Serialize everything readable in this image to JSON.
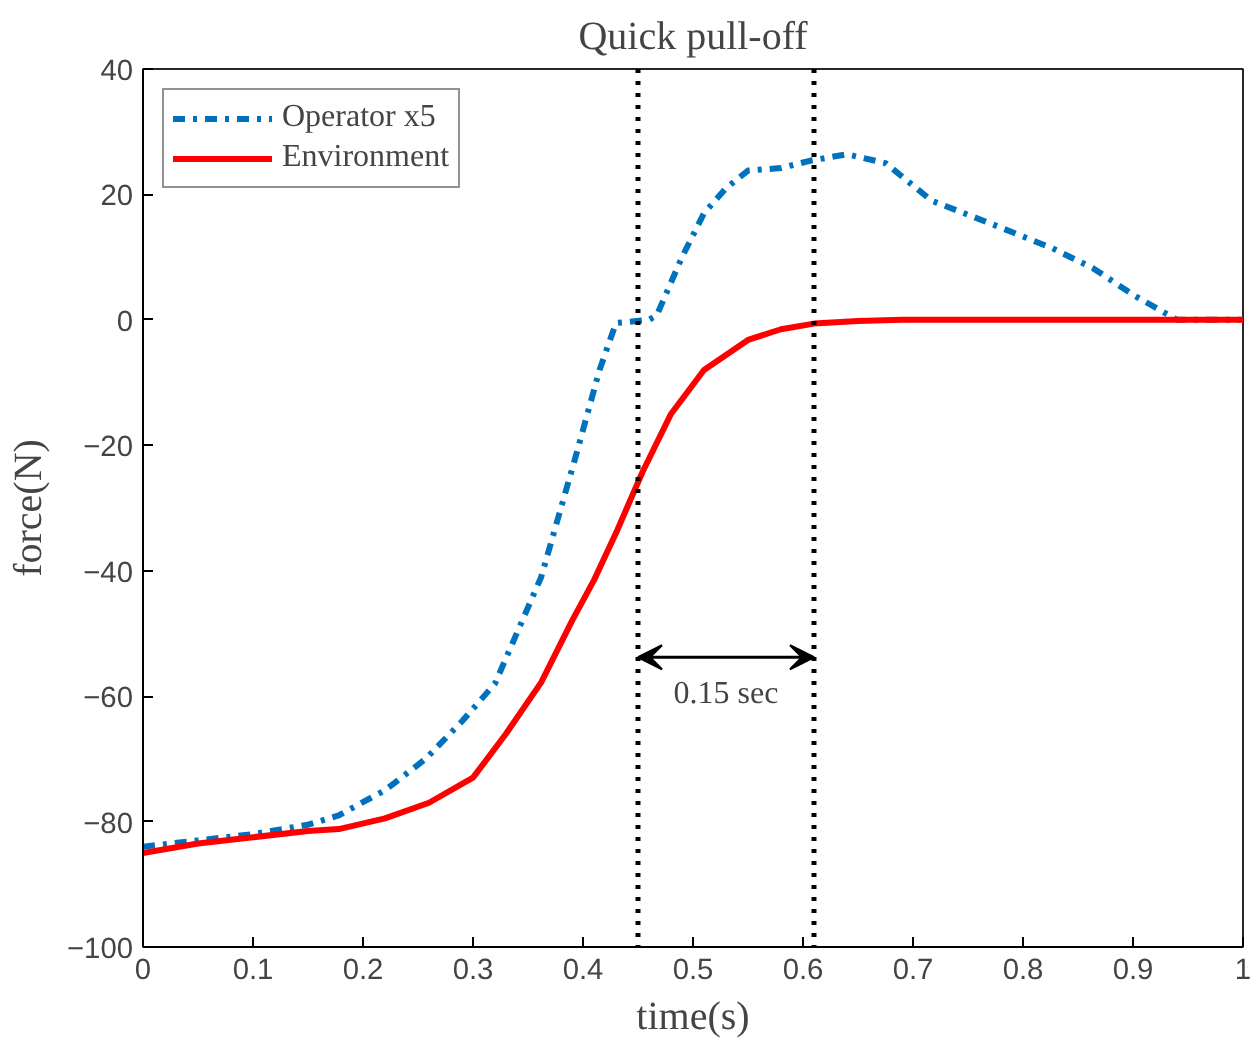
{
  "chart_data": {
    "type": "line",
    "title": "Quick pull-off",
    "xlabel": "time(s)",
    "ylabel": "force(N)",
    "xlim": [
      0,
      1
    ],
    "ylim": [
      -100,
      40
    ],
    "xticks": [
      0,
      0.1,
      0.2,
      0.3,
      0.4,
      0.5,
      0.6,
      0.7,
      0.8,
      0.9,
      1
    ],
    "yticks": [
      -100,
      -80,
      -60,
      -40,
      -20,
      0,
      20,
      40
    ],
    "grid": false,
    "legend": "top left",
    "series": [
      {
        "name": "Operator x5",
        "color": "#0072bd",
        "line_style": "dashdot",
        "x": [
          0,
          0.05,
          0.1,
          0.15,
          0.178,
          0.22,
          0.257,
          0.29,
          0.32,
          0.362,
          0.393,
          0.415,
          0.43,
          0.46,
          0.467,
          0.49,
          0.51,
          0.53,
          0.55,
          0.58,
          0.607,
          0.64,
          0.675,
          0.717,
          0.767,
          0.827,
          0.864,
          0.9,
          0.94,
          1.0
        ],
        "values": [
          -84,
          -83,
          -82,
          -80.5,
          -79,
          -75,
          -70,
          -64,
          -58,
          -41,
          -22,
          -8,
          -0.5,
          0,
          0.7,
          10,
          17,
          21,
          23.8,
          24.2,
          25.4,
          26.4,
          25,
          19,
          15.6,
          11.4,
          8.2,
          4,
          0,
          0
        ]
      },
      {
        "name": "Environment",
        "color": "#ff0000",
        "line_style": "solid",
        "x": [
          0,
          0.05,
          0.1,
          0.15,
          0.178,
          0.22,
          0.26,
          0.3,
          0.33,
          0.362,
          0.39,
          0.41,
          0.43,
          0.454,
          0.48,
          0.51,
          0.55,
          0.58,
          0.61,
          0.65,
          0.69,
          1.0
        ],
        "values": [
          -85,
          -83.5,
          -82.5,
          -81.5,
          -81.2,
          -79.5,
          -77,
          -73,
          -66,
          -57.8,
          -48,
          -41.5,
          -34,
          -24.3,
          -15,
          -8,
          -3.2,
          -1.5,
          -0.6,
          -0.2,
          0,
          0
        ]
      }
    ],
    "ref_lines": [
      {
        "axis": "x",
        "value": 0.45,
        "color": "#000000",
        "line_style": "dotted"
      },
      {
        "axis": "x",
        "value": 0.61,
        "color": "#000000",
        "line_style": "dotted"
      }
    ],
    "annotations": [
      "0.15 sec"
    ]
  }
}
